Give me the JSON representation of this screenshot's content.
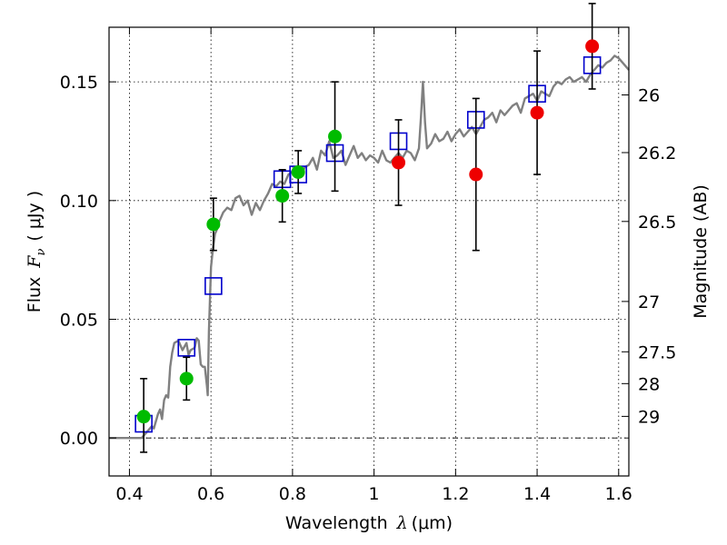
{
  "chart_data": {
    "type": "scatter",
    "xlabel": "Wavelength",
    "xlabel_symbol": "λ",
    "xlabel_unit": "(μm)",
    "ylabel": "Flux",
    "ylabel_symbol": "F",
    "ylabel_sub": "ν",
    "ylabel_unit": "( μJy )",
    "y2label": "Magnitude (AB)",
    "xlim": [
      0.35,
      1.625
    ],
    "ylim": [
      -0.016,
      0.173
    ],
    "grid": true,
    "xticks": [
      0.4,
      0.6,
      0.8,
      1.0,
      1.2,
      1.4,
      1.6
    ],
    "xtick_labels": [
      "0.4",
      "0.6",
      "0.8",
      "1",
      "1.2",
      "1.4",
      "1.6"
    ],
    "yticks": [
      0.0,
      0.05,
      0.1,
      0.15
    ],
    "ytick_labels": [
      "0.00",
      "0.05",
      "0.10",
      "0.15"
    ],
    "y2ticks": [
      {
        "label": "26",
        "flux": 0.1445
      },
      {
        "label": "26.2",
        "flux": 0.1202
      },
      {
        "label": "26.5",
        "flux": 0.0912
      },
      {
        "label": "27",
        "flux": 0.0575
      },
      {
        "label": "27.5",
        "flux": 0.0363
      },
      {
        "label": "28",
        "flux": 0.0229
      },
      {
        "label": "29",
        "flux": 0.0091
      }
    ],
    "zero_line": 0.0,
    "colors": {
      "model": "#808080",
      "green": "#00bb00",
      "red": "#ee0000",
      "model_band": "#0000cc",
      "errorbar": "#000000"
    },
    "series": [
      {
        "name": "model spectrum",
        "kind": "line",
        "x": [
          0.35,
          0.43,
          0.44,
          0.455,
          0.46,
          0.47,
          0.475,
          0.48,
          0.485,
          0.49,
          0.495,
          0.5,
          0.505,
          0.51,
          0.52,
          0.53,
          0.54,
          0.545,
          0.55,
          0.56,
          0.565,
          0.57,
          0.575,
          0.58,
          0.585,
          0.59,
          0.592,
          0.595,
          0.6,
          0.605,
          0.61,
          0.615,
          0.62,
          0.63,
          0.64,
          0.65,
          0.66,
          0.67,
          0.68,
          0.69,
          0.7,
          0.71,
          0.72,
          0.73,
          0.74,
          0.75,
          0.76,
          0.77,
          0.78,
          0.79,
          0.8,
          0.81,
          0.82,
          0.83,
          0.84,
          0.85,
          0.86,
          0.87,
          0.88,
          0.89,
          0.9,
          0.91,
          0.92,
          0.93,
          0.94,
          0.95,
          0.96,
          0.97,
          0.98,
          0.99,
          1.0,
          1.01,
          1.02,
          1.03,
          1.04,
          1.05,
          1.06,
          1.07,
          1.08,
          1.09,
          1.1,
          1.11,
          1.115,
          1.12,
          1.125,
          1.13,
          1.14,
          1.15,
          1.16,
          1.17,
          1.18,
          1.19,
          1.2,
          1.21,
          1.22,
          1.23,
          1.24,
          1.25,
          1.26,
          1.27,
          1.28,
          1.29,
          1.3,
          1.31,
          1.32,
          1.33,
          1.34,
          1.35,
          1.36,
          1.37,
          1.38,
          1.39,
          1.4,
          1.41,
          1.42,
          1.43,
          1.44,
          1.45,
          1.46,
          1.47,
          1.48,
          1.49,
          1.5,
          1.51,
          1.52,
          1.53,
          1.54,
          1.55,
          1.56,
          1.57,
          1.58,
          1.59,
          1.6,
          1.61,
          1.625
        ],
        "y": [
          0.0,
          0.0,
          0.002,
          0.005,
          0.004,
          0.01,
          0.012,
          0.008,
          0.016,
          0.018,
          0.017,
          0.03,
          0.036,
          0.04,
          0.041,
          0.037,
          0.04,
          0.035,
          0.037,
          0.038,
          0.042,
          0.041,
          0.031,
          0.03,
          0.03,
          0.022,
          0.018,
          0.045,
          0.072,
          0.08,
          0.086,
          0.088,
          0.091,
          0.095,
          0.097,
          0.096,
          0.101,
          0.102,
          0.098,
          0.1,
          0.094,
          0.099,
          0.096,
          0.1,
          0.103,
          0.107,
          0.106,
          0.108,
          0.107,
          0.111,
          0.112,
          0.113,
          0.11,
          0.114,
          0.115,
          0.118,
          0.113,
          0.121,
          0.119,
          0.125,
          0.118,
          0.119,
          0.121,
          0.115,
          0.119,
          0.123,
          0.118,
          0.12,
          0.117,
          0.119,
          0.118,
          0.116,
          0.121,
          0.117,
          0.116,
          0.118,
          0.12,
          0.118,
          0.121,
          0.12,
          0.117,
          0.122,
          0.135,
          0.15,
          0.133,
          0.122,
          0.124,
          0.128,
          0.125,
          0.126,
          0.129,
          0.125,
          0.128,
          0.13,
          0.127,
          0.129,
          0.131,
          0.128,
          0.131,
          0.134,
          0.135,
          0.137,
          0.133,
          0.138,
          0.136,
          0.138,
          0.14,
          0.141,
          0.137,
          0.143,
          0.144,
          0.145,
          0.142,
          0.146,
          0.145,
          0.144,
          0.148,
          0.15,
          0.149,
          0.151,
          0.152,
          0.15,
          0.151,
          0.152,
          0.15,
          0.153,
          0.155,
          0.157,
          0.156,
          0.158,
          0.159,
          0.161,
          0.16,
          0.158,
          0.155
        ]
      },
      {
        "name": "model bandpass fluxes",
        "kind": "open-square",
        "x": [
          0.435,
          0.54,
          0.606,
          0.775,
          0.814,
          0.904,
          1.06,
          1.25,
          1.4,
          1.535
        ],
        "y": [
          0.006,
          0.038,
          0.064,
          0.109,
          0.111,
          0.12,
          0.125,
          0.134,
          0.145,
          0.157
        ]
      },
      {
        "name": "observed (green)",
        "kind": "point",
        "x": [
          0.435,
          0.54,
          0.606,
          0.775,
          0.814,
          0.904
        ],
        "y": [
          0.009,
          0.025,
          0.09,
          0.102,
          0.112,
          0.127
        ],
        "yerr_low": [
          0.015,
          0.009,
          0.011,
          0.011,
          0.009,
          0.023
        ],
        "yerr_high": [
          0.016,
          0.009,
          0.011,
          0.011,
          0.009,
          0.023
        ]
      },
      {
        "name": "observed (red)",
        "kind": "point",
        "x": [
          1.06,
          1.25,
          1.4,
          1.535
        ],
        "y": [
          0.116,
          0.111,
          0.137,
          0.165
        ],
        "yerr_low": [
          0.018,
          0.032,
          0.026,
          0.018
        ],
        "yerr_high": [
          0.018,
          0.032,
          0.026,
          0.018
        ]
      }
    ]
  }
}
